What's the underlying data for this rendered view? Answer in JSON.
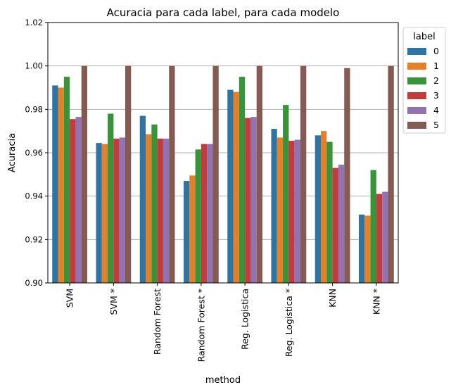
{
  "chart_data": {
    "type": "bar",
    "title": "Acuracia para cada label, para cada modelo",
    "xlabel": "method",
    "ylabel": "Acuracia",
    "ylim": [
      0.9,
      1.02
    ],
    "yticks": [
      "0.90",
      "0.92",
      "0.94",
      "0.96",
      "0.98",
      "1.00",
      "1.02"
    ],
    "grid": "horizontal",
    "legend_title": "label",
    "legend_position": "upper-right-outside",
    "categories": [
      "SVM",
      "SVM *",
      "Random Forest",
      "Random Forest *",
      "Reg. Logistica",
      "Reg. Logistica *",
      "KNN",
      "KNN *"
    ],
    "series": [
      {
        "name": "0",
        "color": "#3274a1",
        "values": [
          0.991,
          0.9645,
          0.977,
          0.947,
          0.989,
          0.971,
          0.968,
          0.9315
        ]
      },
      {
        "name": "1",
        "color": "#e1812c",
        "values": [
          0.99,
          0.964,
          0.9685,
          0.9495,
          0.988,
          0.967,
          0.97,
          0.931
        ]
      },
      {
        "name": "2",
        "color": "#3a923a",
        "values": [
          0.995,
          0.978,
          0.973,
          0.9615,
          0.995,
          0.982,
          0.965,
          0.952
        ]
      },
      {
        "name": "3",
        "color": "#c03d3e",
        "values": [
          0.9755,
          0.9665,
          0.9665,
          0.964,
          0.976,
          0.9655,
          0.953,
          0.941
        ]
      },
      {
        "name": "4",
        "color": "#9372b2",
        "values": [
          0.9765,
          0.967,
          0.9665,
          0.964,
          0.9765,
          0.966,
          0.9545,
          0.942
        ]
      },
      {
        "name": "5",
        "color": "#845b53",
        "values": [
          1.0,
          1.0,
          1.0,
          1.0,
          1.0,
          1.0,
          0.999,
          1.0
        ]
      }
    ]
  }
}
